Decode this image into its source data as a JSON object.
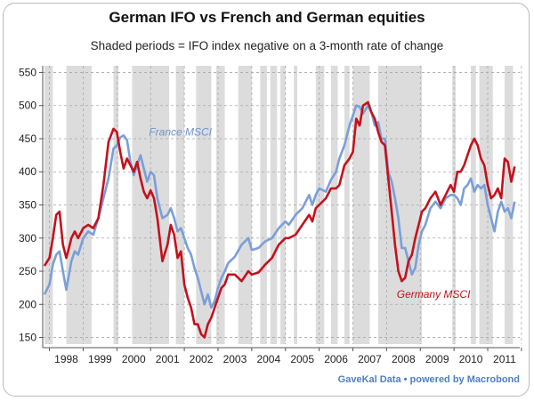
{
  "chart_data": {
    "type": "line",
    "title": "German IFO vs French and German equities",
    "subtitle": "Shaded periods = IFO index negative on a 3-month rate of change",
    "source": "GaveKal Data • powered by Macrobond",
    "ylim": [
      140,
      560
    ],
    "xlim": [
      1997.8,
      2011.95
    ],
    "y_ticks": [
      150,
      200,
      250,
      300,
      350,
      400,
      450,
      500,
      550
    ],
    "x_tick_labels": [
      "1998",
      "1999",
      "2000",
      "2001",
      "2002",
      "2003",
      "2004",
      "2005",
      "2006",
      "2007",
      "2008",
      "2009",
      "2010",
      "2011"
    ],
    "x_tick_positions": [
      1998.5,
      1999.5,
      2000.5,
      2001.5,
      2002.5,
      2003.5,
      2004.5,
      2005.5,
      2006.5,
      2007.5,
      2008.5,
      2009.5,
      2010.5,
      2011.5
    ],
    "grid": true,
    "shaded_periods": [
      [
        1997.85,
        1998.1
      ],
      [
        1998.5,
        1999.25
      ],
      [
        1999.9,
        2000.05
      ],
      [
        2000.45,
        2001.55
      ],
      [
        2001.75,
        2002.0
      ],
      [
        2002.35,
        2002.8
      ],
      [
        2002.95,
        2003.2
      ],
      [
        2003.6,
        2004.0
      ],
      [
        2004.25,
        2004.45
      ],
      [
        2004.55,
        2004.75
      ],
      [
        2004.85,
        2005.0
      ],
      [
        2005.25,
        2005.35
      ],
      [
        2005.9,
        2006.15
      ],
      [
        2006.35,
        2006.55
      ],
      [
        2006.75,
        2006.9
      ],
      [
        2007.0,
        2007.5
      ],
      [
        2007.75,
        2009.05
      ],
      [
        2009.95,
        2010.05
      ],
      [
        2010.5,
        2010.65
      ],
      [
        2010.75,
        2011.15
      ],
      [
        2011.5,
        2011.75
      ]
    ],
    "series": [
      {
        "name": "France MSCI",
        "color": "#7a9fd9",
        "x": [
          1997.85,
          1998.0,
          1998.1,
          1998.2,
          1998.3,
          1998.4,
          1998.5,
          1998.58,
          1998.65,
          1998.75,
          1998.85,
          1999.0,
          1999.15,
          1999.3,
          1999.45,
          1999.6,
          1999.75,
          1999.9,
          2000.0,
          2000.1,
          2000.2,
          2000.3,
          2000.4,
          2000.5,
          2000.6,
          2000.7,
          2000.8,
          2000.9,
          2001.0,
          2001.1,
          2001.2,
          2001.35,
          2001.5,
          2001.6,
          2001.7,
          2001.8,
          2001.9,
          2002.0,
          2002.1,
          2002.2,
          2002.3,
          2002.4,
          2002.5,
          2002.6,
          2002.7,
          2002.8,
          2002.9,
          2003.0,
          2003.1,
          2003.2,
          2003.3,
          2003.5,
          2003.7,
          2003.9,
          2004.0,
          2004.2,
          2004.4,
          2004.6,
          2004.8,
          2005.0,
          2005.1,
          2005.3,
          2005.5,
          2005.7,
          2005.8,
          2005.9,
          2006.0,
          2006.2,
          2006.35,
          2006.5,
          2006.6,
          2006.75,
          2006.9,
          2007.0,
          2007.1,
          2007.2,
          2007.3,
          2007.45,
          2007.55,
          2007.65,
          2007.75,
          2007.85,
          2007.95,
          2008.05,
          2008.15,
          2008.25,
          2008.35,
          2008.45,
          2008.55,
          2008.65,
          2008.75,
          2008.85,
          2008.95,
          2009.05,
          2009.15,
          2009.3,
          2009.45,
          2009.6,
          2009.75,
          2009.9,
          2010.0,
          2010.1,
          2010.2,
          2010.3,
          2010.4,
          2010.5,
          2010.6,
          2010.7,
          2010.8,
          2010.9,
          2011.0,
          2011.1,
          2011.2,
          2011.3,
          2011.4,
          2011.5,
          2011.6,
          2011.7,
          2011.8
        ],
        "y": [
          215,
          230,
          260,
          275,
          280,
          250,
          222,
          245,
          265,
          280,
          275,
          300,
          310,
          305,
          330,
          360,
          390,
          435,
          440,
          452,
          455,
          448,
          415,
          395,
          410,
          425,
          405,
          385,
          400,
          395,
          360,
          330,
          335,
          345,
          330,
          310,
          315,
          300,
          285,
          275,
          255,
          240,
          220,
          200,
          215,
          195,
          205,
          225,
          240,
          250,
          262,
          272,
          290,
          300,
          282,
          285,
          295,
          300,
          315,
          325,
          320,
          335,
          345,
          365,
          350,
          365,
          375,
          370,
          388,
          400,
          420,
          440,
          470,
          485,
          500,
          498,
          488,
          500,
          490,
          470,
          475,
          450,
          450,
          400,
          385,
          360,
          330,
          285,
          285,
          265,
          245,
          255,
          290,
          310,
          320,
          345,
          355,
          345,
          360,
          365,
          365,
          360,
          350,
          375,
          380,
          390,
          370,
          380,
          375,
          380,
          350,
          330,
          310,
          340,
          355,
          340,
          345,
          330,
          355
        ]
      },
      {
        "name": "Germany MSCI",
        "color": "#c4111d",
        "x": [
          1997.85,
          1998.0,
          1998.1,
          1998.2,
          1998.3,
          1998.4,
          1998.5,
          1998.58,
          1998.65,
          1998.75,
          1998.85,
          1999.0,
          1999.15,
          1999.3,
          1999.45,
          1999.6,
          1999.75,
          1999.9,
          2000.0,
          2000.1,
          2000.2,
          2000.3,
          2000.4,
          2000.5,
          2000.6,
          2000.7,
          2000.8,
          2000.9,
          2001.0,
          2001.1,
          2001.2,
          2001.35,
          2001.5,
          2001.6,
          2001.7,
          2001.8,
          2001.9,
          2002.0,
          2002.1,
          2002.2,
          2002.3,
          2002.4,
          2002.5,
          2002.6,
          2002.7,
          2002.8,
          2002.9,
          2003.0,
          2003.1,
          2003.2,
          2003.3,
          2003.5,
          2003.7,
          2003.9,
          2004.0,
          2004.2,
          2004.4,
          2004.6,
          2004.8,
          2005.0,
          2005.1,
          2005.3,
          2005.5,
          2005.7,
          2005.8,
          2005.9,
          2006.0,
          2006.2,
          2006.35,
          2006.5,
          2006.6,
          2006.75,
          2006.9,
          2007.0,
          2007.1,
          2007.2,
          2007.3,
          2007.45,
          2007.55,
          2007.65,
          2007.75,
          2007.85,
          2007.95,
          2008.05,
          2008.15,
          2008.25,
          2008.35,
          2008.45,
          2008.55,
          2008.65,
          2008.75,
          2008.85,
          2008.95,
          2009.05,
          2009.15,
          2009.3,
          2009.45,
          2009.6,
          2009.75,
          2009.9,
          2010.0,
          2010.1,
          2010.2,
          2010.3,
          2010.4,
          2010.5,
          2010.6,
          2010.7,
          2010.8,
          2010.9,
          2011.0,
          2011.1,
          2011.2,
          2011.3,
          2011.4,
          2011.5,
          2011.6,
          2011.7,
          2011.8
        ],
        "y": [
          258,
          270,
          300,
          335,
          340,
          290,
          270,
          285,
          300,
          310,
          300,
          315,
          320,
          315,
          330,
          380,
          445,
          465,
          460,
          430,
          405,
          420,
          410,
          400,
          415,
          390,
          370,
          360,
          372,
          360,
          330,
          265,
          290,
          320,
          305,
          270,
          280,
          230,
          210,
          195,
          170,
          170,
          155,
          150,
          170,
          180,
          195,
          210,
          225,
          230,
          245,
          245,
          235,
          250,
          245,
          248,
          260,
          270,
          290,
          300,
          300,
          305,
          320,
          335,
          325,
          345,
          350,
          360,
          375,
          375,
          380,
          410,
          420,
          430,
          480,
          470,
          500,
          505,
          490,
          480,
          460,
          445,
          440,
          390,
          340,
          290,
          250,
          235,
          240,
          265,
          275,
          300,
          320,
          340,
          345,
          360,
          370,
          350,
          365,
          380,
          370,
          400,
          400,
          410,
          425,
          440,
          450,
          440,
          420,
          410,
          380,
          360,
          365,
          375,
          360,
          420,
          415,
          385,
          408
        ]
      }
    ],
    "annotations": [
      {
        "text": "France MSCI",
        "x": 2000.95,
        "y": 455
      },
      {
        "text": "Germany MSCI",
        "x": 2008.3,
        "y": 210
      }
    ]
  }
}
